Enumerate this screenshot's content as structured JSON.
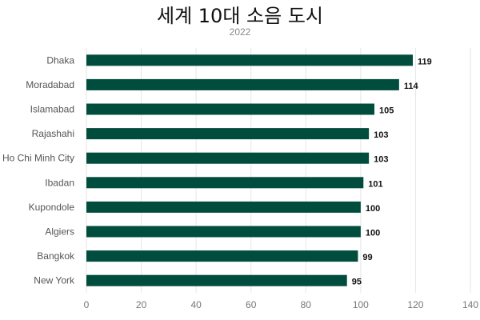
{
  "chart_data": {
    "type": "bar",
    "orientation": "horizontal",
    "title": "세계 10대 소음 도시",
    "subtitle": "2022",
    "categories": [
      "Dhaka",
      "Moradabad",
      "Islamabad",
      "Rajashahi",
      "Ho Chi Minh City",
      "Ibadan",
      "Kupondole",
      "Algiers",
      "Bangkok",
      "New York"
    ],
    "values": [
      119,
      114,
      105,
      103,
      103,
      101,
      100,
      100,
      99,
      95
    ],
    "xlim": [
      0,
      140
    ],
    "x_ticks": [
      0,
      20,
      40,
      60,
      80,
      100,
      120,
      140
    ],
    "xlabel": "",
    "ylabel": "",
    "grid": "vertical",
    "data_labels": true,
    "bar_color": "#004d3d"
  }
}
